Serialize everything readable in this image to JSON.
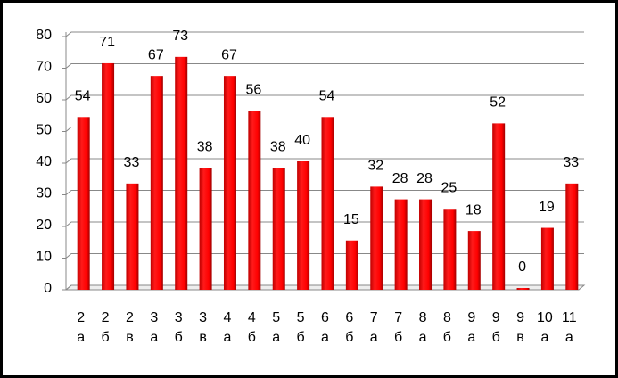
{
  "chart_data": {
    "type": "bar",
    "categories": [
      "2 а",
      "2 б",
      "2 в",
      "3 а",
      "3 б",
      "3 в",
      "4 а",
      "4 б",
      "5 а",
      "5 б",
      "6 а",
      "6 б",
      "7 а",
      "7 б",
      "8 а",
      "8 б",
      "9 а",
      "9 б",
      "9 в",
      "10 а",
      "11 а"
    ],
    "values": [
      54,
      71,
      33,
      67,
      73,
      38,
      67,
      56,
      38,
      40,
      54,
      15,
      32,
      28,
      28,
      25,
      18,
      52,
      0,
      19,
      33
    ],
    "color": "#ff0000",
    "ylim": [
      0,
      80
    ],
    "yticks": [
      0,
      10,
      20,
      30,
      40,
      50,
      60,
      70,
      80
    ],
    "grid": true
  }
}
